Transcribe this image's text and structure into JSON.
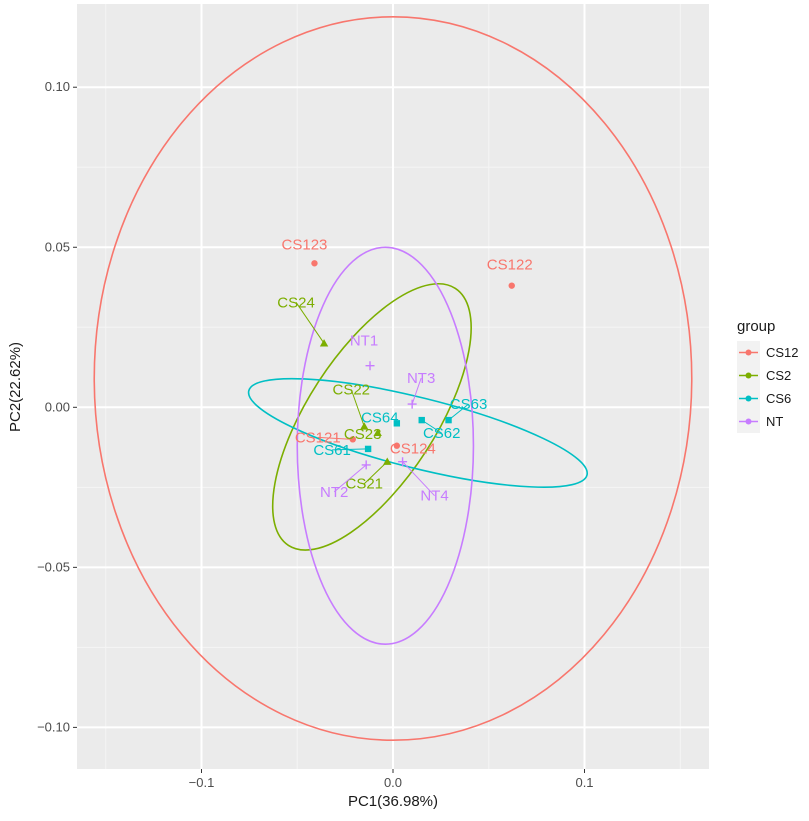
{
  "chart_data": {
    "type": "scatter",
    "xlabel": "PC1(36.98%)",
    "ylabel": "PC2(22.62%)",
    "xlim": [
      -0.165,
      0.165
    ],
    "ylim": [
      -0.113,
      0.126
    ],
    "x_ticks": [
      {
        "value": -0.1,
        "label": "−0.1"
      },
      {
        "value": 0.0,
        "label": "0.0"
      },
      {
        "value": 0.1,
        "label": "0.1"
      }
    ],
    "y_ticks": [
      {
        "value": -0.1,
        "label": "−0.10"
      },
      {
        "value": -0.05,
        "label": "−0.05"
      },
      {
        "value": 0.0,
        "label": "0.00"
      },
      {
        "value": 0.05,
        "label": "0.05"
      },
      {
        "value": 0.1,
        "label": "0.10"
      }
    ],
    "grid": true,
    "background": "#ebebeb",
    "legend": {
      "title": "group",
      "position": "right",
      "items": [
        "CS12",
        "CS2",
        "CS6",
        "NT"
      ]
    },
    "groups": [
      {
        "name": "CS12",
        "color": "#f8766d",
        "shape": "circle",
        "points": [
          {
            "label": "CS121",
            "x": -0.021,
            "y": -0.01
          },
          {
            "label": "CS122",
            "x": 0.062,
            "y": 0.038
          },
          {
            "label": "CS123",
            "x": -0.041,
            "y": 0.045
          },
          {
            "label": "CS124",
            "x": 0.002,
            "y": -0.012
          }
        ],
        "ellipse": {
          "cx": 0.0,
          "cy": 0.009,
          "rx": 0.156,
          "ry": 0.113,
          "angle": 0
        }
      },
      {
        "name": "CS2",
        "color": "#7cae00",
        "shape": "triangle",
        "points": [
          {
            "label": "CS21",
            "x": -0.003,
            "y": -0.017
          },
          {
            "label": "CS22",
            "x": -0.015,
            "y": -0.006
          },
          {
            "label": "CS23",
            "x": -0.008,
            "y": -0.008
          },
          {
            "label": "CS24",
            "x": -0.036,
            "y": 0.02
          }
        ],
        "ellipse": {
          "cx": -0.011,
          "cy": -0.003,
          "rx": 0.08,
          "ry": 0.02,
          "angle": -57
        }
      },
      {
        "name": "CS6",
        "color": "#00bfc4",
        "shape": "square",
        "points": [
          {
            "label": "CS61",
            "x": -0.013,
            "y": -0.013
          },
          {
            "label": "CS62",
            "x": 0.015,
            "y": -0.004
          },
          {
            "label": "CS63",
            "x": 0.029,
            "y": -0.004
          },
          {
            "label": "CS64",
            "x": 0.002,
            "y": -0.005
          }
        ],
        "ellipse": {
          "cx": 0.013,
          "cy": -0.008,
          "rx": 0.091,
          "ry": 0.011,
          "angle": 14
        }
      },
      {
        "name": "NT",
        "color": "#c77cff",
        "shape": "plus",
        "points": [
          {
            "label": "NT1",
            "x": -0.012,
            "y": 0.013
          },
          {
            "label": "NT2",
            "x": -0.014,
            "y": -0.018
          },
          {
            "label": "NT3",
            "x": 0.01,
            "y": 0.001
          },
          {
            "label": "NT4",
            "x": 0.005,
            "y": -0.017
          }
        ],
        "ellipse": {
          "cx": -0.004,
          "cy": -0.012,
          "rx": 0.046,
          "ry": 0.062,
          "angle": 0
        }
      }
    ]
  }
}
